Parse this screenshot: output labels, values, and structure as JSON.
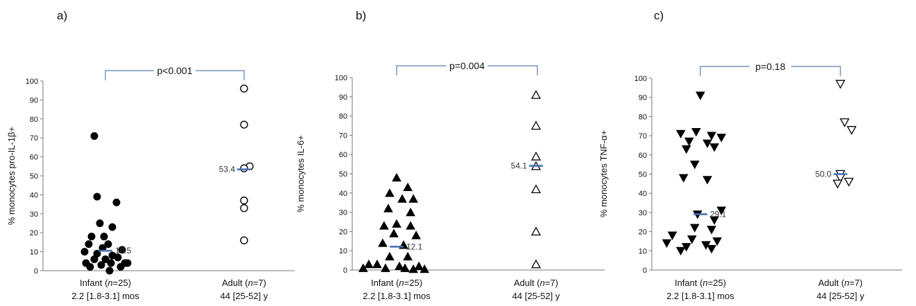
{
  "chart_data": [
    {
      "type": "scatter",
      "panel": "a)",
      "ylabel": "% monocytes pro-IL-1β+",
      "ylim": [
        0,
        100
      ],
      "yticks": [
        0,
        10,
        20,
        30,
        40,
        50,
        60,
        70,
        80,
        90,
        100
      ],
      "categories": [
        {
          "label": "Infant (n=25)",
          "sublabel": "2.2 [1.8-3.1] mos"
        },
        {
          "label": "Adult (n=7)",
          "sublabel": "44 [25-52] y"
        }
      ],
      "p_value": "p<0.001",
      "series": [
        {
          "group": "Infant (n=25)",
          "marker": "filled-circle",
          "median": 10.5,
          "median_label": "10.5",
          "points": [
            [
              -0.08,
              71
            ],
            [
              -0.06,
              39
            ],
            [
              0.08,
              36
            ],
            [
              -0.04,
              25
            ],
            [
              0.05,
              23
            ],
            [
              -0.1,
              18
            ],
            [
              -0.01,
              18
            ],
            [
              0.02,
              14
            ],
            [
              -0.12,
              14
            ],
            [
              0.12,
              11
            ],
            [
              -0.02,
              12
            ],
            [
              -0.15,
              10
            ],
            [
              -0.06,
              9
            ],
            [
              0.05,
              8
            ],
            [
              0.09,
              7
            ],
            [
              -0.08,
              6
            ],
            [
              0.0,
              6
            ],
            [
              -0.14,
              4
            ],
            [
              0.04,
              4
            ],
            [
              0.14,
              4
            ],
            [
              -0.11,
              2
            ],
            [
              -0.03,
              3
            ],
            [
              0.11,
              2
            ],
            [
              0.16,
              4
            ],
            [
              0.03,
              0
            ]
          ]
        },
        {
          "group": "Adult (n=7)",
          "marker": "open-circle",
          "median": 53.4,
          "median_label": "53.4",
          "points": [
            [
              0,
              96
            ],
            [
              0,
              77
            ],
            [
              0.04,
              55
            ],
            [
              0,
              54
            ],
            [
              0,
              37
            ],
            [
              0,
              33
            ],
            [
              0,
              16
            ]
          ]
        }
      ]
    },
    {
      "type": "scatter",
      "panel": "b)",
      "ylabel": "% monocytes IL-6+",
      "ylim": [
        0,
        100
      ],
      "yticks": [
        0,
        10,
        20,
        30,
        40,
        50,
        60,
        70,
        80,
        90,
        100
      ],
      "categories": [
        {
          "label": "Infant (n=25)",
          "sublabel": "2.2 [1.8-3.1] mos"
        },
        {
          "label": "Adult (n=7)",
          "sublabel": "44 [25-52] y"
        }
      ],
      "p_value": "p=0.004",
      "series": [
        {
          "group": "Infant (n=25)",
          "marker": "filled-triangle-up",
          "median": 12.1,
          "median_label": "12.1",
          "points": [
            [
              0.0,
              48
            ],
            [
              0.08,
              43
            ],
            [
              -0.05,
              40
            ],
            [
              0.04,
              37
            ],
            [
              0.12,
              37
            ],
            [
              -0.06,
              32
            ],
            [
              0.1,
              30
            ],
            [
              -0.09,
              23
            ],
            [
              0.0,
              24
            ],
            [
              0.1,
              23
            ],
            [
              -0.02,
              19
            ],
            [
              0.14,
              18
            ],
            [
              -0.1,
              14
            ],
            [
              0.05,
              13
            ],
            [
              -0.05,
              7
            ],
            [
              0.08,
              7
            ],
            [
              -0.2,
              3
            ],
            [
              -0.14,
              3
            ],
            [
              0.02,
              2
            ],
            [
              0.16,
              2
            ],
            [
              -0.24,
              1
            ],
            [
              -0.08,
              1
            ],
            [
              0.06,
              1
            ],
            [
              0.12,
              0.5
            ],
            [
              0.2,
              0.5
            ]
          ]
        },
        {
          "group": "Adult (n=7)",
          "marker": "open-triangle-up",
          "median": 54.1,
          "median_label": "54.1",
          "points": [
            [
              0,
              91
            ],
            [
              0,
              75
            ],
            [
              0,
              59
            ],
            [
              0,
              54
            ],
            [
              0,
              42
            ],
            [
              0,
              20
            ],
            [
              0,
              3
            ]
          ]
        }
      ]
    },
    {
      "type": "scatter",
      "panel": "c)",
      "ylabel": "% monocytes TNF-α+",
      "ylim": [
        0,
        100
      ],
      "yticks": [
        0,
        10,
        20,
        30,
        40,
        50,
        60,
        70,
        80,
        90,
        100
      ],
      "categories": [
        {
          "label": "Infant (n=25)",
          "sublabel": "2.2 [1.8-3.1] mos"
        },
        {
          "label": "Adult (n=7)",
          "sublabel": "44 [25-52] y"
        }
      ],
      "p_value": "p=0.18",
      "series": [
        {
          "group": "Infant (n=25)",
          "marker": "filled-triangle-down",
          "median": 29.1,
          "median_label": "29.1",
          "points": [
            [
              0.0,
              91
            ],
            [
              -0.14,
              71
            ],
            [
              -0.03,
              72
            ],
            [
              0.08,
              70
            ],
            [
              0.15,
              69
            ],
            [
              -0.08,
              67
            ],
            [
              0.05,
              66
            ],
            [
              -0.1,
              63
            ],
            [
              0.1,
              64
            ],
            [
              -0.04,
              55
            ],
            [
              -0.12,
              48
            ],
            [
              0.05,
              47
            ],
            [
              -0.02,
              29
            ],
            [
              0.15,
              31
            ],
            [
              0.1,
              26
            ],
            [
              -0.04,
              22
            ],
            [
              0.08,
              21
            ],
            [
              -0.2,
              18
            ],
            [
              -0.06,
              16
            ],
            [
              0.12,
              15
            ],
            [
              -0.24,
              14
            ],
            [
              -0.1,
              12
            ],
            [
              0.04,
              13
            ],
            [
              -0.14,
              10
            ],
            [
              0.08,
              11
            ]
          ]
        },
        {
          "group": "Adult (n=7)",
          "marker": "open-triangle-down",
          "median": 50.0,
          "median_label": "50.0",
          "points": [
            [
              0,
              97
            ],
            [
              0.03,
              77
            ],
            [
              0.08,
              73
            ],
            [
              0,
              50
            ],
            [
              0,
              48
            ],
            [
              -0.02,
              45
            ],
            [
              0.06,
              46
            ]
          ]
        }
      ]
    }
  ]
}
